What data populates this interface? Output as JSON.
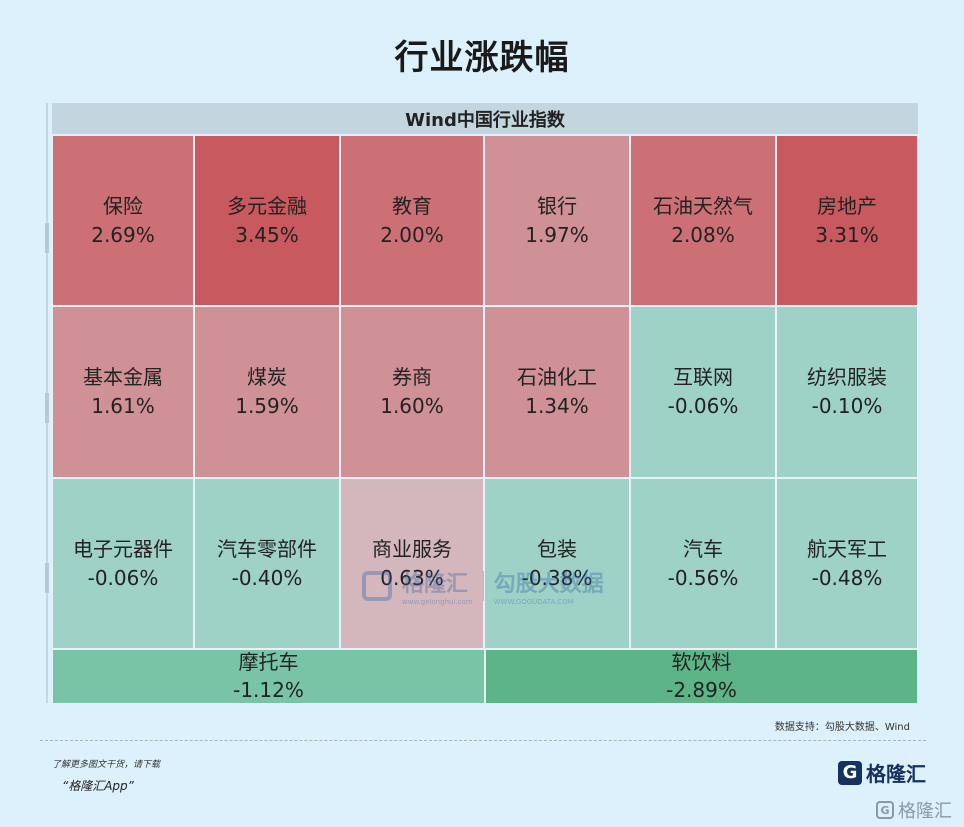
{
  "page": {
    "title": "行业涨跌幅",
    "source": "数据支持：勾股大数据、Wind",
    "footer_note": "了解更多图文干货，请下载",
    "footer_app": "“格隆汇App”",
    "brand_name": "格隆汇",
    "watermark_brand": "格隆汇",
    "watermark_sub": "www.gelonghui.com",
    "watermark_brand2": "勾股大数据",
    "watermark_sub2": "WWW.GOGUDATA.COM"
  },
  "chart_data": {
    "type": "heatmap",
    "title": "Wind中国行业指数",
    "colors": {
      "up_strong": "#c8595e",
      "up_mid": "#cc7076",
      "up_light": "#cf9195",
      "down_light": "#9ed2c6",
      "down_mid": "#79c4a6",
      "down_strong": "#5db587",
      "commercial": "#d4b6bd"
    },
    "rows": [
      [
        {
          "name": "保险",
          "value": "2.69%"
        },
        {
          "name": "多元金融",
          "value": "3.45%"
        },
        {
          "name": "教育",
          "value": "2.00%"
        },
        {
          "name": "银行",
          "value": "1.97%"
        },
        {
          "name": "石油天然气",
          "value": "2.08%"
        },
        {
          "name": "房地产",
          "value": "3.31%"
        }
      ],
      [
        {
          "name": "基本金属",
          "value": "1.61%"
        },
        {
          "name": "煤炭",
          "value": "1.59%"
        },
        {
          "name": "券商",
          "value": "1.60%"
        },
        {
          "name": "石油化工",
          "value": "1.34%"
        },
        {
          "name": "互联网",
          "value": "-0.06%"
        },
        {
          "name": "纺织服装",
          "value": "-0.10%"
        }
      ],
      [
        {
          "name": "电子元器件",
          "value": "-0.06%"
        },
        {
          "name": "汽车零部件",
          "value": "-0.40%"
        },
        {
          "name": "商业服务",
          "value": "0.63%"
        },
        {
          "name": "包装",
          "value": "-0.38%"
        },
        {
          "name": "汽车",
          "value": "-0.56%"
        },
        {
          "name": "航天军工",
          "value": "-0.48%"
        }
      ],
      [
        {
          "name": "摩托车",
          "value": "-1.12%"
        },
        {
          "name": "软饮料",
          "value": "-2.89%"
        }
      ]
    ]
  }
}
